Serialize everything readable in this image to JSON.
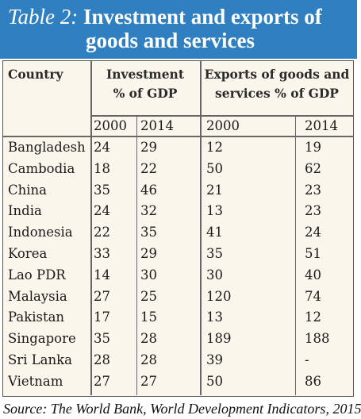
{
  "title": {
    "prefix": "Table 2:",
    "line1": "Investment and exports of",
    "line2": "goods and services"
  },
  "headers": {
    "country": "Country",
    "investment_line1": "Investment",
    "investment_line2": "% of GDP",
    "exports_line1": "Exports of goods and",
    "exports_line2": "services % of GDP"
  },
  "years": [
    "2000",
    "2014",
    "2000",
    "2014"
  ],
  "rows": [
    {
      "country": "Bangladesh",
      "inv2000": "24",
      "inv2014": "29",
      "exp2000": "12",
      "exp2014": "19"
    },
    {
      "country": "Cambodia",
      "inv2000": "18",
      "inv2014": "22",
      "exp2000": "50",
      "exp2014": "62"
    },
    {
      "country": "China",
      "inv2000": "35",
      "inv2014": "46",
      "exp2000": "21",
      "exp2014": "23"
    },
    {
      "country": "India",
      "inv2000": "24",
      "inv2014": "32",
      "exp2000": "13",
      "exp2014": "23"
    },
    {
      "country": "Indonesia",
      "inv2000": "22",
      "inv2014": "35",
      "exp2000": "41",
      "exp2014": "24"
    },
    {
      "country": "Korea",
      "inv2000": "33",
      "inv2014": "29",
      "exp2000": "35",
      "exp2014": "51"
    },
    {
      "country": "Lao PDR",
      "inv2000": "14",
      "inv2014": "30",
      "exp2000": "30",
      "exp2014": "40"
    },
    {
      "country": "Malaysia",
      "inv2000": "27",
      "inv2014": "25",
      "exp2000": "120",
      "exp2014": "74"
    },
    {
      "country": "Pakistan",
      "inv2000": "17",
      "inv2014": "15",
      "exp2000": "13",
      "exp2014": "12"
    },
    {
      "country": "Singapore",
      "inv2000": "35",
      "inv2014": "28",
      "exp2000": "189",
      "exp2014": "188"
    },
    {
      "country": "Sri Lanka",
      "inv2000": "28",
      "inv2014": "28",
      "exp2000": "39",
      "exp2014": "-"
    },
    {
      "country": "Vietnam",
      "inv2000": "27",
      "inv2014": "27",
      "exp2000": "50",
      "exp2014": "86"
    }
  ],
  "source": "Source: The World Bank, World Development Indicators, 2015"
}
